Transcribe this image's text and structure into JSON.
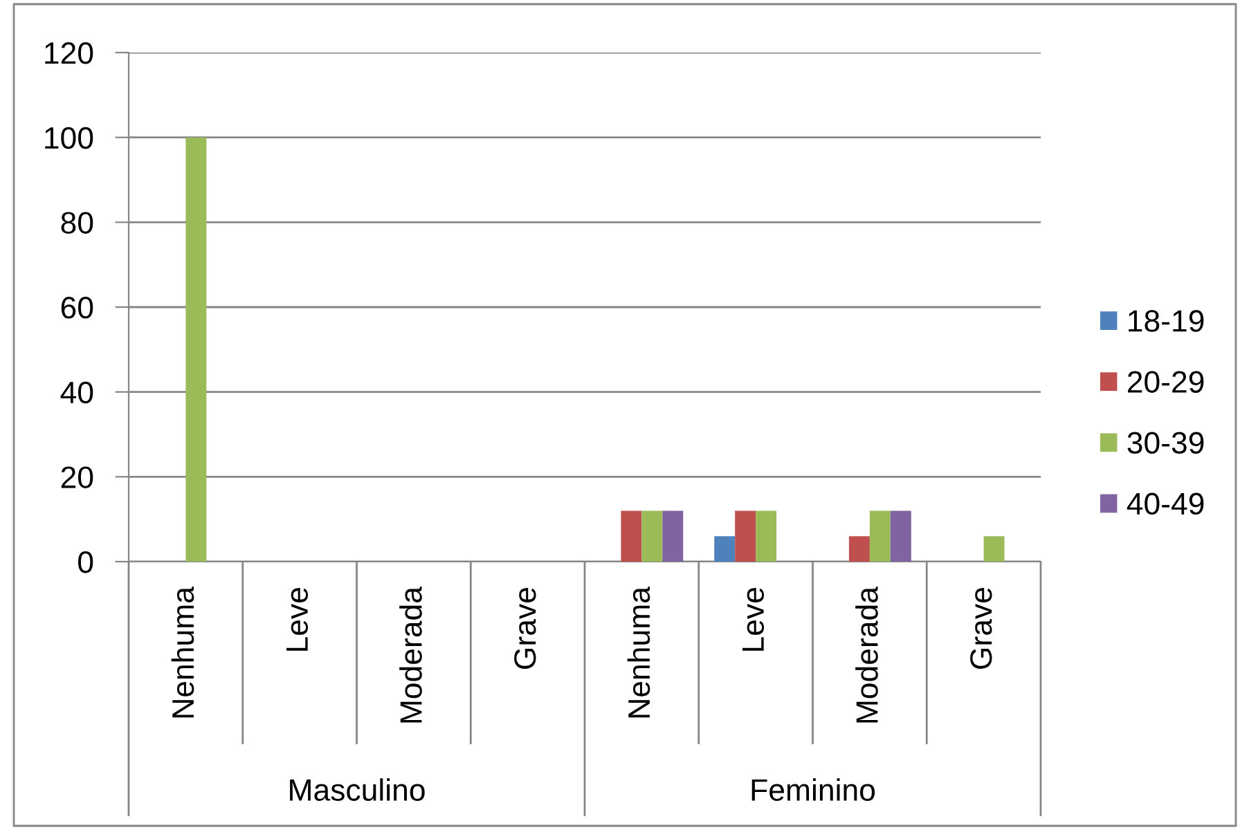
{
  "chart_data": {
    "type": "bar",
    "categories": [
      "Nenhuma",
      "Leve",
      "Moderada",
      "Grave",
      "Nenhuma",
      "Leve",
      "Moderada",
      "Grave"
    ],
    "series": [
      {
        "name": "18-19",
        "color": "#4f81bd",
        "values": [
          null,
          null,
          null,
          null,
          null,
          6,
          null,
          null
        ]
      },
      {
        "name": "20-29",
        "color": "#c0504d",
        "values": [
          null,
          null,
          null,
          null,
          12,
          12,
          6,
          null
        ]
      },
      {
        "name": "30-39",
        "color": "#9bbb59",
        "values": [
          100,
          null,
          null,
          null,
          12,
          12,
          12,
          6
        ]
      },
      {
        "name": "40-49",
        "color": "#8064a2",
        "values": [
          null,
          null,
          null,
          null,
          12,
          null,
          12,
          null
        ]
      }
    ],
    "ylim": [
      0,
      120
    ],
    "yticks": [
      0,
      20,
      40,
      60,
      80,
      100,
      120
    ],
    "grid": "y",
    "legend": "right",
    "annotations": [
      "Masculino",
      "Feminino"
    ]
  }
}
